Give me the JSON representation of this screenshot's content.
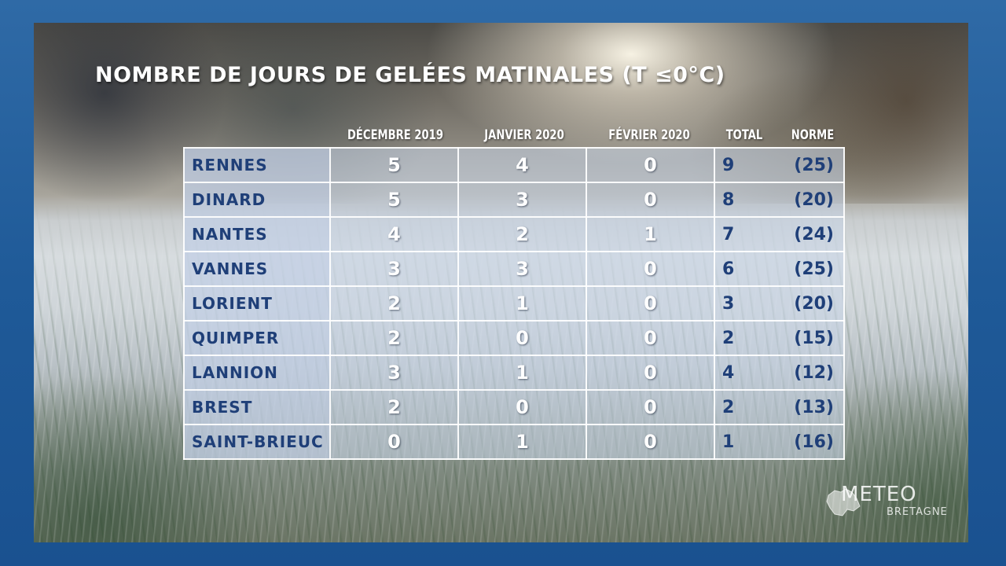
{
  "title": "NOMBRE DE JOURS DE GELÉES MATINALES (T ≤0°C)",
  "logo": {
    "text": "METEO",
    "subtext": "BRETAGNE"
  },
  "chart_data": {
    "type": "table",
    "title": "NOMBRE DE JOURS DE GELÉES MATINALES (T ≤0°C)",
    "columns": [
      "DÉCEMBRE 2019",
      "JANVIER 2020",
      "FÉVRIER 2020",
      "TOTAL",
      "NORME"
    ],
    "rows": [
      {
        "city": "RENNES",
        "dec": "5",
        "jan": "4",
        "feb": "0",
        "total": "9",
        "norme": "(25)"
      },
      {
        "city": "DINARD",
        "dec": "5",
        "jan": "3",
        "feb": "0",
        "total": "8",
        "norme": "(20)"
      },
      {
        "city": "NANTES",
        "dec": "4",
        "jan": "2",
        "feb": "1",
        "total": "7",
        "norme": "(24)"
      },
      {
        "city": "VANNES",
        "dec": "3",
        "jan": "3",
        "feb": "0",
        "total": "6",
        "norme": "(25)"
      },
      {
        "city": "LORIENT",
        "dec": "2",
        "jan": "1",
        "feb": "0",
        "total": "3",
        "norme": "(20)"
      },
      {
        "city": "QUIMPER",
        "dec": "2",
        "jan": "0",
        "feb": "0",
        "total": "2",
        "norme": "(15)"
      },
      {
        "city": "LANNION",
        "dec": "3",
        "jan": "1",
        "feb": "0",
        "total": "4",
        "norme": "(12)"
      },
      {
        "city": "BREST",
        "dec": "2",
        "jan": "0",
        "feb": "0",
        "total": "2",
        "norme": "(13)"
      },
      {
        "city": "SAINT-BRIEUC",
        "dec": "0",
        "jan": "1",
        "feb": "0",
        "total": "1",
        "norme": "(16)"
      }
    ]
  }
}
